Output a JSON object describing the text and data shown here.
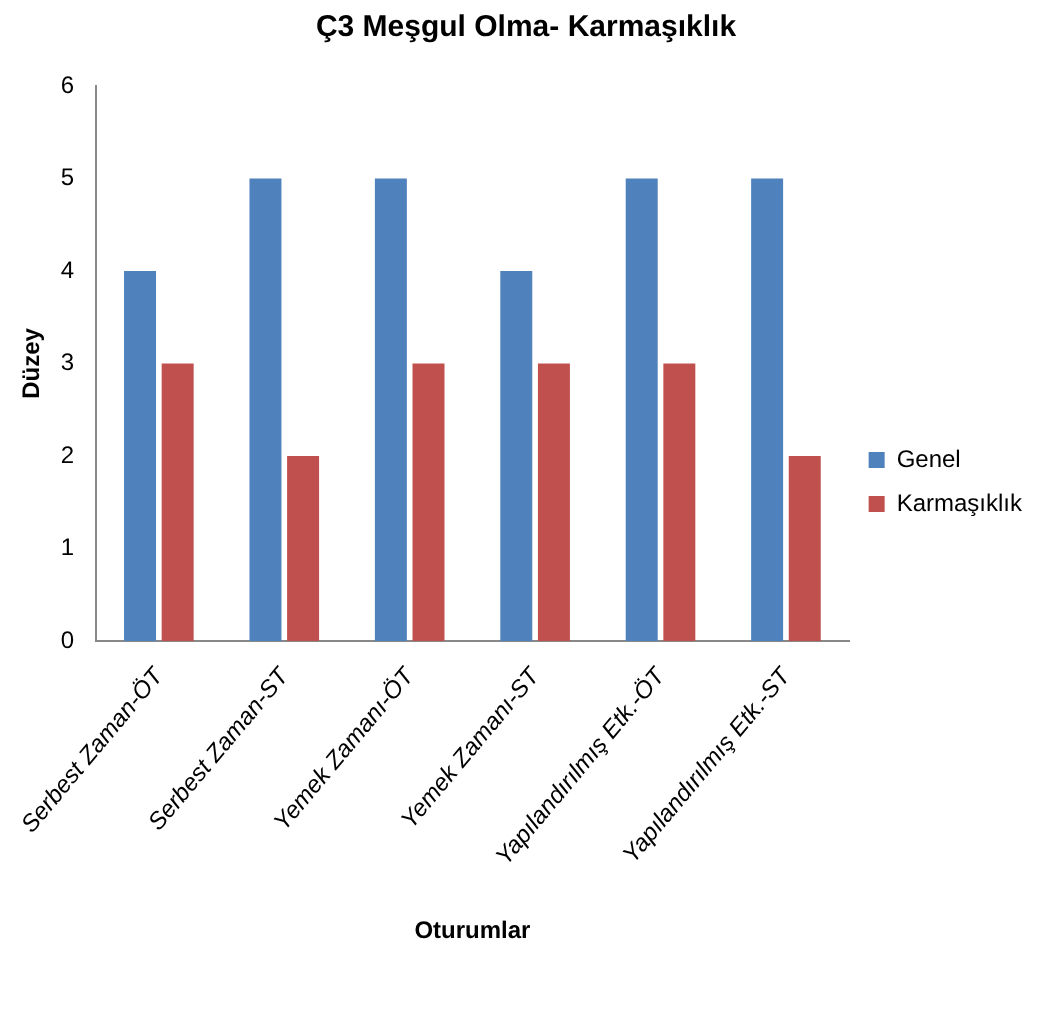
{
  "chart_data": {
    "type": "bar",
    "title": "Ç3 Meşgul Olma- Karmaşıklık",
    "xlabel": "Oturumlar",
    "ylabel": "Düzey",
    "categories": [
      "Serbest Zaman-ÖT",
      "Serbest Zaman-ST",
      "Yemek Zamanı-ÖT",
      "Yemek Zamanı-ST",
      "Yapılandırılmış Etk.-ÖT",
      "Yapılandırılmış Etk.-ST"
    ],
    "series": [
      {
        "name": "Genel",
        "color": "#4f81bd",
        "values": [
          4,
          5,
          5,
          4,
          5,
          5
        ]
      },
      {
        "name": "Karmaşıklık",
        "color": "#c0504d",
        "values": [
          3,
          2,
          3,
          3,
          3,
          2
        ]
      }
    ],
    "ylim": [
      0,
      6
    ],
    "yticks": [
      0,
      1,
      2,
      3,
      4,
      5,
      6
    ],
    "grid": false,
    "legend": "right"
  }
}
